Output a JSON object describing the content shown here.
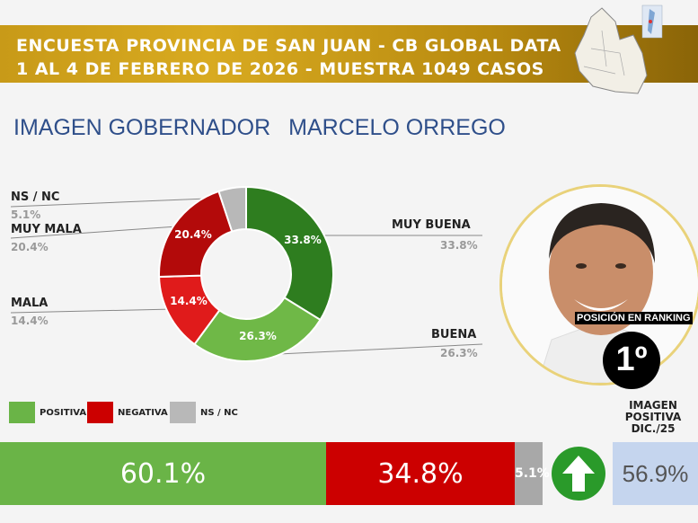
{
  "header": {
    "line1": "ENCUESTA PROVINCIA DE SAN JUAN - CB GLOBAL DATA",
    "line2": "1 AL 4 DE FEBRERO DE 2026 - MUESTRA 1049 CASOS"
  },
  "title": {
    "part1": "IMAGEN GOBERNADOR",
    "part2": "MARCELO ORREGO"
  },
  "chart_data": [
    {
      "type": "pie",
      "categories": [
        "MUY BUENA",
        "BUENA",
        "MALA",
        "MUY MALA",
        "NS / NC"
      ],
      "values": [
        33.8,
        26.3,
        14.4,
        20.4,
        5.1
      ],
      "value_labels": [
        "33.8%",
        "26.3%",
        "14.4%",
        "20.4%",
        "5.1%"
      ],
      "colors": [
        "#2e7d1f",
        "#6fb847",
        "#e01b1b",
        "#b30a0a",
        "#b8b8b8"
      ],
      "donut": true
    },
    {
      "type": "bar",
      "orientation": "horizontal-stacked",
      "categories": [
        "POSITIVA",
        "NEGATIVA",
        "NS / NC"
      ],
      "values": [
        60.1,
        34.8,
        5.1
      ],
      "value_labels": [
        "60.1%",
        "34.8%",
        "5.1%"
      ],
      "colors": [
        "#6ab447",
        "#cc0000",
        "#a8a8a8"
      ]
    }
  ],
  "ranking": {
    "label": "POSICIÓN EN RANKING",
    "value": "1º"
  },
  "previous": {
    "label_lines": [
      "IMAGEN",
      "POSITIVA",
      "DIC./25"
    ],
    "value": "56.9%",
    "trend_icon": "arrow-up-icon"
  }
}
